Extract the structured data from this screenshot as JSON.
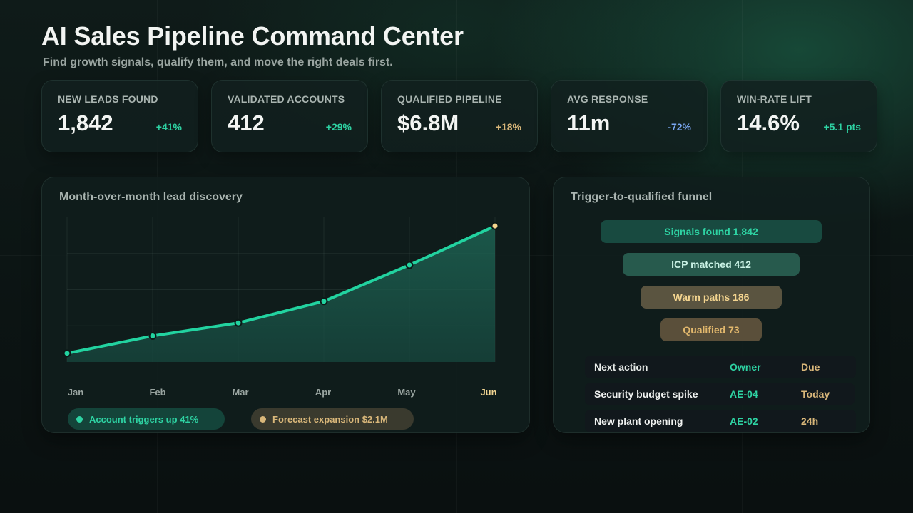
{
  "header": {
    "title": "AI Sales Pipeline Command Center",
    "subtitle": "Find growth signals, qualify them, and move the right deals first."
  },
  "kpis": [
    {
      "label": "NEW LEADS FOUND",
      "value": "1,842",
      "delta": "+41%",
      "delta_color": "#2ed3a3"
    },
    {
      "label": "VALIDATED ACCOUNTS",
      "value": "412",
      "delta": "+29%",
      "delta_color": "#2ed3a3"
    },
    {
      "label": "QUALIFIED PIPELINE",
      "value": "$6.8M",
      "delta": "+18%",
      "delta_color": "#d9b77a"
    },
    {
      "label": "AVG RESPONSE",
      "value": "11m",
      "delta": "-72%",
      "delta_color": "#79a6f0"
    },
    {
      "label": "WIN-RATE LIFT",
      "value": "14.6%",
      "delta": "+5.1 pts",
      "delta_color": "#2ed3a3"
    }
  ],
  "lead_chart": {
    "title": "Month-over-month lead discovery",
    "months": [
      "Jan",
      "Feb",
      "Mar",
      "Apr",
      "May",
      "Jun"
    ],
    "legend": [
      {
        "label": "Account triggers up 41%",
        "color": "#2ed3a3"
      },
      {
        "label": "Forecast expansion $2.1M",
        "color": "#d9b77a"
      }
    ]
  },
  "chart_data": {
    "type": "area",
    "categories": [
      "Jan",
      "Feb",
      "Mar",
      "Apr",
      "May",
      "Jun"
    ],
    "series": [
      {
        "values": [
          0.06,
          0.18,
          0.27,
          0.42,
          0.67,
          0.94
        ]
      }
    ],
    "title": "Month-over-month lead discovery",
    "xlabel": "",
    "ylabel": "",
    "grid": true,
    "line_color": "#22d3a0",
    "highlight_color": "#f6d58e"
  },
  "funnel": {
    "title": "Trigger-to-qualified funnel",
    "stages": [
      {
        "label": "Signals found 1,842",
        "bg": "#184a40",
        "fg": "#2ed3a3"
      },
      {
        "label": "ICP matched 412",
        "bg": "#275a4d",
        "fg": "#c9f2e5"
      },
      {
        "label": "Warm paths 186",
        "bg": "#5a5440",
        "fg": "#f3d48f"
      },
      {
        "label": "Qualified 73",
        "bg": "#5a4f3a",
        "fg": "#e2b86d"
      }
    ],
    "table": {
      "headers": [
        "Next action",
        "Owner",
        "Due"
      ],
      "rows": [
        [
          "Security budget spike",
          "AE-04",
          "Today"
        ],
        [
          "New plant opening",
          "AE-02",
          "24h"
        ]
      ]
    }
  }
}
